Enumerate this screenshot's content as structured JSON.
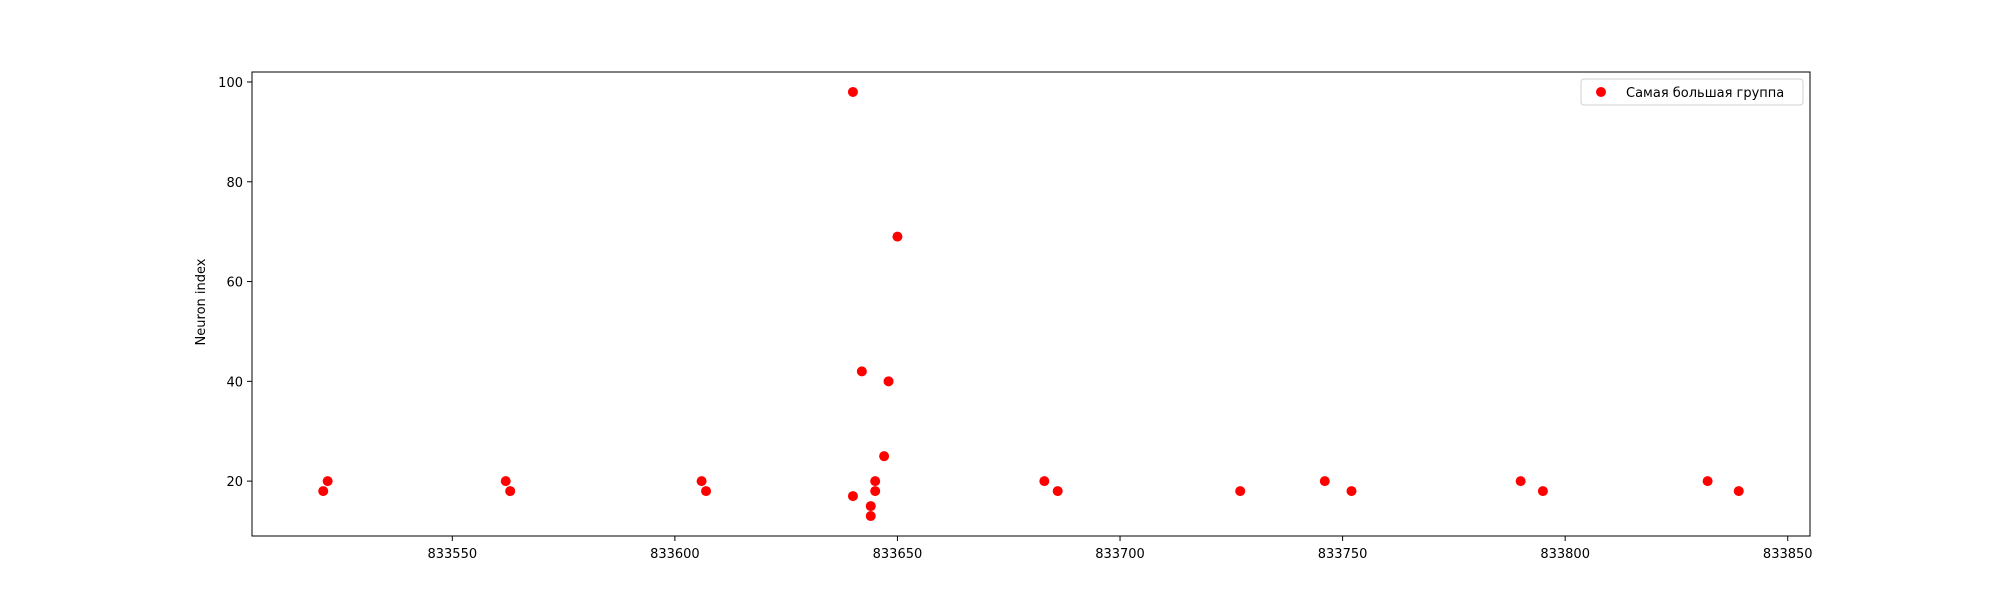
{
  "chart_data": {
    "type": "scatter",
    "title": "",
    "xlabel": "",
    "ylabel": "Neuron index",
    "xlim": [
      833505,
      833855
    ],
    "ylim": [
      9,
      102
    ],
    "xticks": [
      833550,
      833600,
      833650,
      833700,
      833750,
      833800,
      833850
    ],
    "yticks": [
      20,
      40,
      60,
      80,
      100
    ],
    "grid": false,
    "legend_position": "top-right",
    "series": [
      {
        "name": "Самая большая группа",
        "color": "#ff0000",
        "marker": "circle",
        "points": [
          {
            "x": 833521,
            "y": 18
          },
          {
            "x": 833522,
            "y": 20
          },
          {
            "x": 833562,
            "y": 20
          },
          {
            "x": 833563,
            "y": 18
          },
          {
            "x": 833606,
            "y": 20
          },
          {
            "x": 833607,
            "y": 18
          },
          {
            "x": 833640,
            "y": 98
          },
          {
            "x": 833640,
            "y": 17
          },
          {
            "x": 833642,
            "y": 42
          },
          {
            "x": 833644,
            "y": 15
          },
          {
            "x": 833644,
            "y": 13
          },
          {
            "x": 833645,
            "y": 20
          },
          {
            "x": 833645,
            "y": 18
          },
          {
            "x": 833647,
            "y": 25
          },
          {
            "x": 833648,
            "y": 40
          },
          {
            "x": 833650,
            "y": 69
          },
          {
            "x": 833683,
            "y": 20
          },
          {
            "x": 833686,
            "y": 18
          },
          {
            "x": 833727,
            "y": 18
          },
          {
            "x": 833746,
            "y": 20
          },
          {
            "x": 833752,
            "y": 18
          },
          {
            "x": 833790,
            "y": 20
          },
          {
            "x": 833795,
            "y": 18
          },
          {
            "x": 833832,
            "y": 20
          },
          {
            "x": 833839,
            "y": 18
          }
        ]
      }
    ]
  }
}
